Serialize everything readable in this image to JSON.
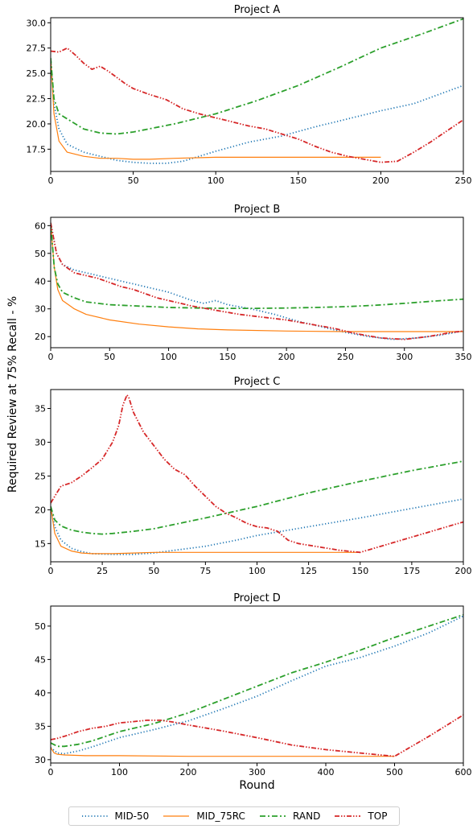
{
  "ylabel": "Required Review at 75% Recall - %",
  "xlabel": "Round",
  "legend": [
    {
      "name": "MID-50",
      "color": "#1f77b4",
      "style": "dotted"
    },
    {
      "name": "MID_75RC",
      "color": "#ff7f0e",
      "style": "solid"
    },
    {
      "name": "RAND",
      "color": "#2ca02c",
      "style": "dashdot"
    },
    {
      "name": "TOP",
      "color": "#d62728",
      "style": "dashdotdot"
    }
  ],
  "chart_data": [
    {
      "type": "line",
      "title": "Project A",
      "xlim": [
        0,
        250
      ],
      "ylim": [
        15.3,
        30.5
      ],
      "xticks": [
        0,
        50,
        100,
        150,
        200,
        250
      ],
      "yticks": [
        17.5,
        20.0,
        22.5,
        25.0,
        27.5,
        30.0
      ],
      "ytick_labels": [
        "17.5",
        "20.0",
        "22.5",
        "25.0",
        "27.5",
        "30.0"
      ],
      "series": [
        {
          "name": "MID-50",
          "x": [
            0,
            2,
            5,
            10,
            20,
            30,
            40,
            50,
            60,
            70,
            80,
            90,
            100,
            120,
            140,
            160,
            180,
            200,
            220,
            240,
            250
          ],
          "y": [
            26.5,
            22.0,
            19.5,
            18.0,
            17.2,
            16.8,
            16.4,
            16.2,
            16.1,
            16.1,
            16.3,
            16.8,
            17.3,
            18.2,
            18.8,
            19.7,
            20.5,
            21.3,
            22.0,
            23.2,
            23.8
          ]
        },
        {
          "name": "MID_75RC",
          "x": [
            0,
            2,
            5,
            10,
            20,
            30,
            40,
            50,
            60,
            75,
            100,
            150,
            200
          ],
          "y": [
            26.5,
            21.0,
            18.3,
            17.2,
            16.8,
            16.6,
            16.6,
            16.5,
            16.5,
            16.6,
            16.7,
            16.7,
            16.7
          ]
        },
        {
          "name": "RAND",
          "x": [
            0,
            2,
            5,
            10,
            20,
            30,
            40,
            50,
            75,
            100,
            125,
            150,
            175,
            200,
            225,
            250
          ],
          "y": [
            26.5,
            22.5,
            21.0,
            20.5,
            19.5,
            19.1,
            19.0,
            19.2,
            20.0,
            21.0,
            22.3,
            23.8,
            25.6,
            27.5,
            28.9,
            30.4
          ]
        },
        {
          "name": "TOP",
          "x": [
            0,
            5,
            10,
            15,
            20,
            25,
            30,
            35,
            40,
            45,
            50,
            60,
            70,
            80,
            90,
            100,
            110,
            120,
            130,
            140,
            150,
            160,
            170,
            180,
            190,
            200,
            210,
            220,
            230,
            240,
            250
          ],
          "y": [
            27.2,
            27.1,
            27.5,
            26.8,
            26.0,
            25.4,
            25.7,
            25.2,
            24.6,
            24.0,
            23.5,
            22.9,
            22.4,
            21.5,
            21.0,
            20.6,
            20.2,
            19.8,
            19.5,
            19.0,
            18.5,
            17.8,
            17.2,
            16.8,
            16.5,
            16.2,
            16.3,
            17.2,
            18.2,
            19.3,
            20.4
          ]
        }
      ]
    },
    {
      "type": "line",
      "title": "Project B",
      "xlim": [
        0,
        350
      ],
      "ylim": [
        16,
        63
      ],
      "xticks": [
        0,
        50,
        100,
        150,
        200,
        250,
        300,
        350
      ],
      "yticks": [
        20,
        30,
        40,
        50,
        60
      ],
      "ytick_labels": [
        "20",
        "30",
        "40",
        "50",
        "60"
      ],
      "series": [
        {
          "name": "MID-50",
          "x": [
            0,
            5,
            10,
            20,
            30,
            40,
            50,
            60,
            70,
            80,
            90,
            100,
            110,
            120,
            130,
            140,
            150,
            170,
            190,
            210,
            230,
            250,
            270,
            290,
            310,
            330,
            350
          ],
          "y": [
            61,
            50,
            46,
            44,
            43,
            42,
            41,
            40,
            39,
            38,
            37,
            36,
            34.5,
            33,
            32,
            33,
            31.5,
            30,
            28,
            25.5,
            23.5,
            21.5,
            20,
            19,
            19.5,
            20.5,
            22
          ]
        },
        {
          "name": "MID_75RC",
          "x": [
            0,
            3,
            6,
            10,
            20,
            30,
            50,
            75,
            100,
            125,
            150,
            200,
            250,
            300,
            350
          ],
          "y": [
            61,
            45,
            37,
            33,
            30,
            28,
            26,
            24.5,
            23.5,
            22.8,
            22.4,
            22.0,
            21.8,
            21.8,
            21.8
          ]
        },
        {
          "name": "RAND",
          "x": [
            0,
            3,
            6,
            10,
            20,
            30,
            50,
            75,
            100,
            125,
            150,
            175,
            200,
            225,
            250,
            275,
            300,
            325,
            350
          ],
          "y": [
            61,
            45,
            39,
            36,
            34,
            32.5,
            31.5,
            31,
            30.5,
            30.3,
            30.2,
            30.2,
            30.3,
            30.5,
            30.8,
            31.3,
            32,
            32.8,
            33.5
          ]
        },
        {
          "name": "TOP",
          "x": [
            0,
            5,
            10,
            20,
            30,
            40,
            50,
            60,
            70,
            80,
            90,
            100,
            120,
            140,
            160,
            180,
            200,
            220,
            240,
            260,
            280,
            300,
            320,
            340,
            350
          ],
          "y": [
            61,
            50,
            46,
            43,
            42,
            41,
            39.5,
            38,
            37,
            35.5,
            34,
            33,
            31,
            29.5,
            28,
            27,
            26,
            24.5,
            23,
            21,
            19.5,
            19,
            20,
            21.5,
            22
          ]
        }
      ]
    },
    {
      "type": "line",
      "title": "Project C",
      "xlim": [
        0,
        200
      ],
      "ylim": [
        12.3,
        37.8
      ],
      "xticks": [
        0,
        25,
        50,
        75,
        100,
        125,
        150,
        175,
        200
      ],
      "yticks": [
        15,
        20,
        25,
        30,
        35
      ],
      "ytick_labels": [
        "15",
        "20",
        "25",
        "30",
        "35"
      ],
      "series": [
        {
          "name": "MID-50",
          "x": [
            0,
            2,
            5,
            10,
            15,
            20,
            30,
            40,
            50,
            60,
            75,
            90,
            100,
            125,
            150,
            175,
            200
          ],
          "y": [
            20.5,
            17.5,
            15.5,
            14.3,
            13.8,
            13.5,
            13.4,
            13.4,
            13.6,
            14.0,
            14.6,
            15.5,
            16.2,
            17.5,
            18.8,
            20.2,
            21.6
          ]
        },
        {
          "name": "MID_75RC",
          "x": [
            0,
            2,
            5,
            10,
            15,
            20,
            30,
            40,
            50,
            75,
            100,
            125,
            150
          ],
          "y": [
            20.5,
            16.5,
            14.6,
            13.9,
            13.6,
            13.5,
            13.5,
            13.6,
            13.7,
            13.7,
            13.7,
            13.7,
            13.7
          ]
        },
        {
          "name": "RAND",
          "x": [
            0,
            2,
            5,
            10,
            15,
            20,
            25,
            30,
            40,
            50,
            75,
            100,
            125,
            150,
            175,
            200
          ],
          "y": [
            20.5,
            18.5,
            17.6,
            17.0,
            16.7,
            16.5,
            16.4,
            16.5,
            16.8,
            17.2,
            18.8,
            20.5,
            22.5,
            24.2,
            25.8,
            27.2
          ]
        },
        {
          "name": "TOP",
          "x": [
            0,
            2,
            5,
            10,
            15,
            20,
            25,
            30,
            33,
            35,
            37,
            38,
            40,
            45,
            50,
            55,
            60,
            65,
            70,
            75,
            80,
            85,
            90,
            95,
            100,
            105,
            110,
            115,
            120,
            130,
            140,
            150,
            160,
            170,
            180,
            190,
            200
          ],
          "y": [
            21.0,
            22.0,
            23.5,
            24.0,
            25.0,
            26.2,
            27.5,
            30.0,
            32.5,
            35.5,
            37.0,
            36.5,
            34.5,
            31.5,
            29.5,
            27.5,
            26.0,
            25.2,
            23.5,
            22.0,
            20.5,
            19.5,
            18.8,
            18.0,
            17.5,
            17.3,
            16.8,
            15.5,
            15.0,
            14.5,
            14.0,
            13.7,
            14.6,
            15.5,
            16.4,
            17.3,
            18.2
          ]
        }
      ]
    },
    {
      "type": "line",
      "title": "Project D",
      "xlim": [
        0,
        600
      ],
      "ylim": [
        29.5,
        53
      ],
      "xticks": [
        0,
        100,
        200,
        300,
        400,
        500,
        600
      ],
      "yticks": [
        30,
        35,
        40,
        45,
        50
      ],
      "ytick_labels": [
        "30",
        "35",
        "40",
        "45",
        "50"
      ],
      "series": [
        {
          "name": "MID-50",
          "x": [
            0,
            10,
            20,
            40,
            60,
            80,
            100,
            150,
            200,
            250,
            300,
            350,
            400,
            450,
            500,
            550,
            600
          ],
          "y": [
            31.8,
            31.0,
            30.9,
            31.3,
            31.9,
            32.6,
            33.3,
            34.5,
            35.8,
            37.6,
            39.5,
            41.8,
            44.0,
            45.3,
            47.0,
            49.0,
            51.5
          ]
        },
        {
          "name": "MID_75RC",
          "x": [
            0,
            5,
            10,
            20,
            50,
            100,
            200,
            300,
            400,
            500
          ],
          "y": [
            31.8,
            31.0,
            30.8,
            30.7,
            30.6,
            30.6,
            30.5,
            30.5,
            30.5,
            30.5
          ]
        },
        {
          "name": "RAND",
          "x": [
            0,
            10,
            20,
            40,
            60,
            80,
            100,
            150,
            200,
            250,
            300,
            350,
            400,
            450,
            500,
            550,
            600
          ],
          "y": [
            32.5,
            32.0,
            32.0,
            32.3,
            32.8,
            33.5,
            34.2,
            35.4,
            37.0,
            39.0,
            41.0,
            43.0,
            44.6,
            46.4,
            48.3,
            50.0,
            51.7
          ]
        },
        {
          "name": "TOP",
          "x": [
            0,
            10,
            20,
            40,
            60,
            80,
            100,
            120,
            140,
            160,
            180,
            200,
            250,
            300,
            350,
            400,
            450,
            500,
            550,
            600
          ],
          "y": [
            33.0,
            33.2,
            33.5,
            34.2,
            34.7,
            35.0,
            35.5,
            35.7,
            35.9,
            35.9,
            35.6,
            35.2,
            34.3,
            33.3,
            32.2,
            31.5,
            31.0,
            30.5,
            33.5,
            36.7
          ]
        }
      ]
    }
  ]
}
